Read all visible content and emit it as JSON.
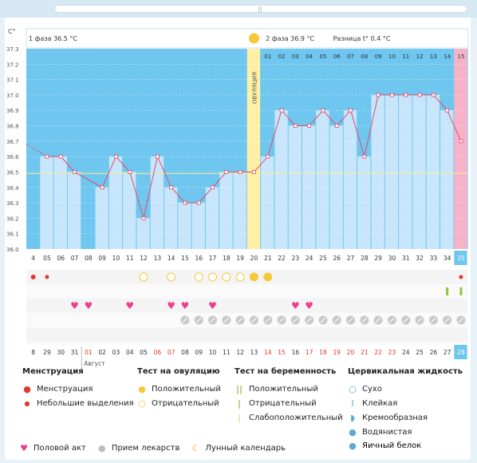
{
  "chart_data": {
    "type": "line",
    "y_axis_unit": "C°",
    "ylim": [
      36.0,
      37.3
    ],
    "y_ticks": [
      "37.3",
      "37.2",
      "37.1",
      "37.0",
      "36.9",
      "36.8",
      "36.7",
      "36.6",
      "36.5",
      "36.4",
      "36.3",
      "36.2",
      "36.1",
      "36.0"
    ],
    "phase1_label": "1 фаза 36.5 °C",
    "phase2_label": "2 фаза 36.9 °C",
    "difference_label": "Разница t° 0.4 °C",
    "ovulation_label": "ОВУЛЯЦИЯ",
    "ovulation_day": 20,
    "cycle_days": [
      "4",
      "05",
      "06",
      "07",
      "08",
      "09",
      "10",
      "11",
      "12",
      "13",
      "14",
      "15",
      "16",
      "17",
      "18",
      "19",
      "20",
      "21",
      "22",
      "23",
      "24",
      "25",
      "26",
      "27",
      "28",
      "29",
      "30",
      "31",
      "32",
      "33",
      "34",
      "35"
    ],
    "post_ovulation_days": [
      "01",
      "02",
      "03",
      "04",
      "05",
      "06",
      "07",
      "08",
      "09",
      "10",
      "11",
      "12",
      "13",
      "14",
      "15"
    ],
    "temperatures": [
      null,
      36.6,
      36.6,
      36.5,
      null,
      36.4,
      36.6,
      36.5,
      36.2,
      36.6,
      36.4,
      36.3,
      36.3,
      36.4,
      36.5,
      36.5,
      36.5,
      36.6,
      36.9,
      36.8,
      36.8,
      36.9,
      36.8,
      36.9,
      36.6,
      37.0,
      37.0,
      37.0,
      37.0,
      37.0,
      36.9,
      36.7
    ],
    "bar_tops": [
      36.0,
      36.6,
      36.6,
      36.5,
      36.0,
      36.4,
      36.6,
      36.5,
      36.2,
      36.6,
      36.4,
      36.3,
      36.3,
      36.4,
      36.5,
      36.5,
      36.5,
      36.6,
      36.9,
      36.8,
      36.8,
      36.9,
      36.8,
      36.9,
      36.6,
      37.0,
      37.0,
      37.0,
      37.0,
      37.0,
      36.9,
      36.7
    ],
    "dark_days": [
      4
    ],
    "ovulation_tests_negative": [
      12,
      14,
      16,
      17,
      18,
      19
    ],
    "ovulation_tests_positive": [
      20,
      21
    ],
    "menstruation_days": [
      0,
      1,
      31
    ],
    "pregnancy_test_positive": [
      30,
      31
    ],
    "intercourse_days": [
      3,
      4,
      7,
      10,
      11,
      13,
      19,
      20
    ],
    "medication_start": 15,
    "calendar_dates": [
      "8",
      "29",
      "30",
      "31",
      "01",
      "02",
      "03",
      "04",
      "05",
      "06",
      "07",
      "08",
      "09",
      "10",
      "11",
      "12",
      "13",
      "14",
      "15",
      "16",
      "17",
      "18",
      "19",
      "20",
      "21",
      "22",
      "23",
      "24",
      "25",
      "26",
      "27",
      "28"
    ],
    "calendar_red": [
      4,
      9,
      10,
      17,
      18,
      20,
      21,
      22,
      23,
      24,
      25,
      26
    ],
    "month_label": "Август"
  },
  "legend": {
    "menstruation_title": "Менструация",
    "menstruation": "Менструация",
    "spotting": "Небольшие выделения",
    "ovulation_title": "Тест на овуляцию",
    "ov_positive": "Положительный",
    "ov_negative": "Отрицательный",
    "pregnancy_title": "Тест на беременность",
    "preg_positive": "Положительный",
    "preg_negative": "Отрицательный",
    "preg_weak": "Слабоположительный",
    "cervical_title": "Цервикальная жидкость",
    "dry": "Сухо",
    "sticky": "Клейкая",
    "creamy": "Кремообразная",
    "watery": "Водянистая",
    "eggwhite": "Яичный белок",
    "intercourse": "Половой акт",
    "medication": "Прием лекарств",
    "lunar": "Лунный календарь"
  },
  "colors": {
    "bar": "#c7e6fb",
    "bar_dark": "#6fc6ef",
    "band": "#6fc6ef",
    "ovulation": "#fff0a6",
    "last_col": "#f6b3c8",
    "line": "#e24a6d",
    "heart": "#ec3f8c",
    "yellow": "#f7c93a"
  }
}
